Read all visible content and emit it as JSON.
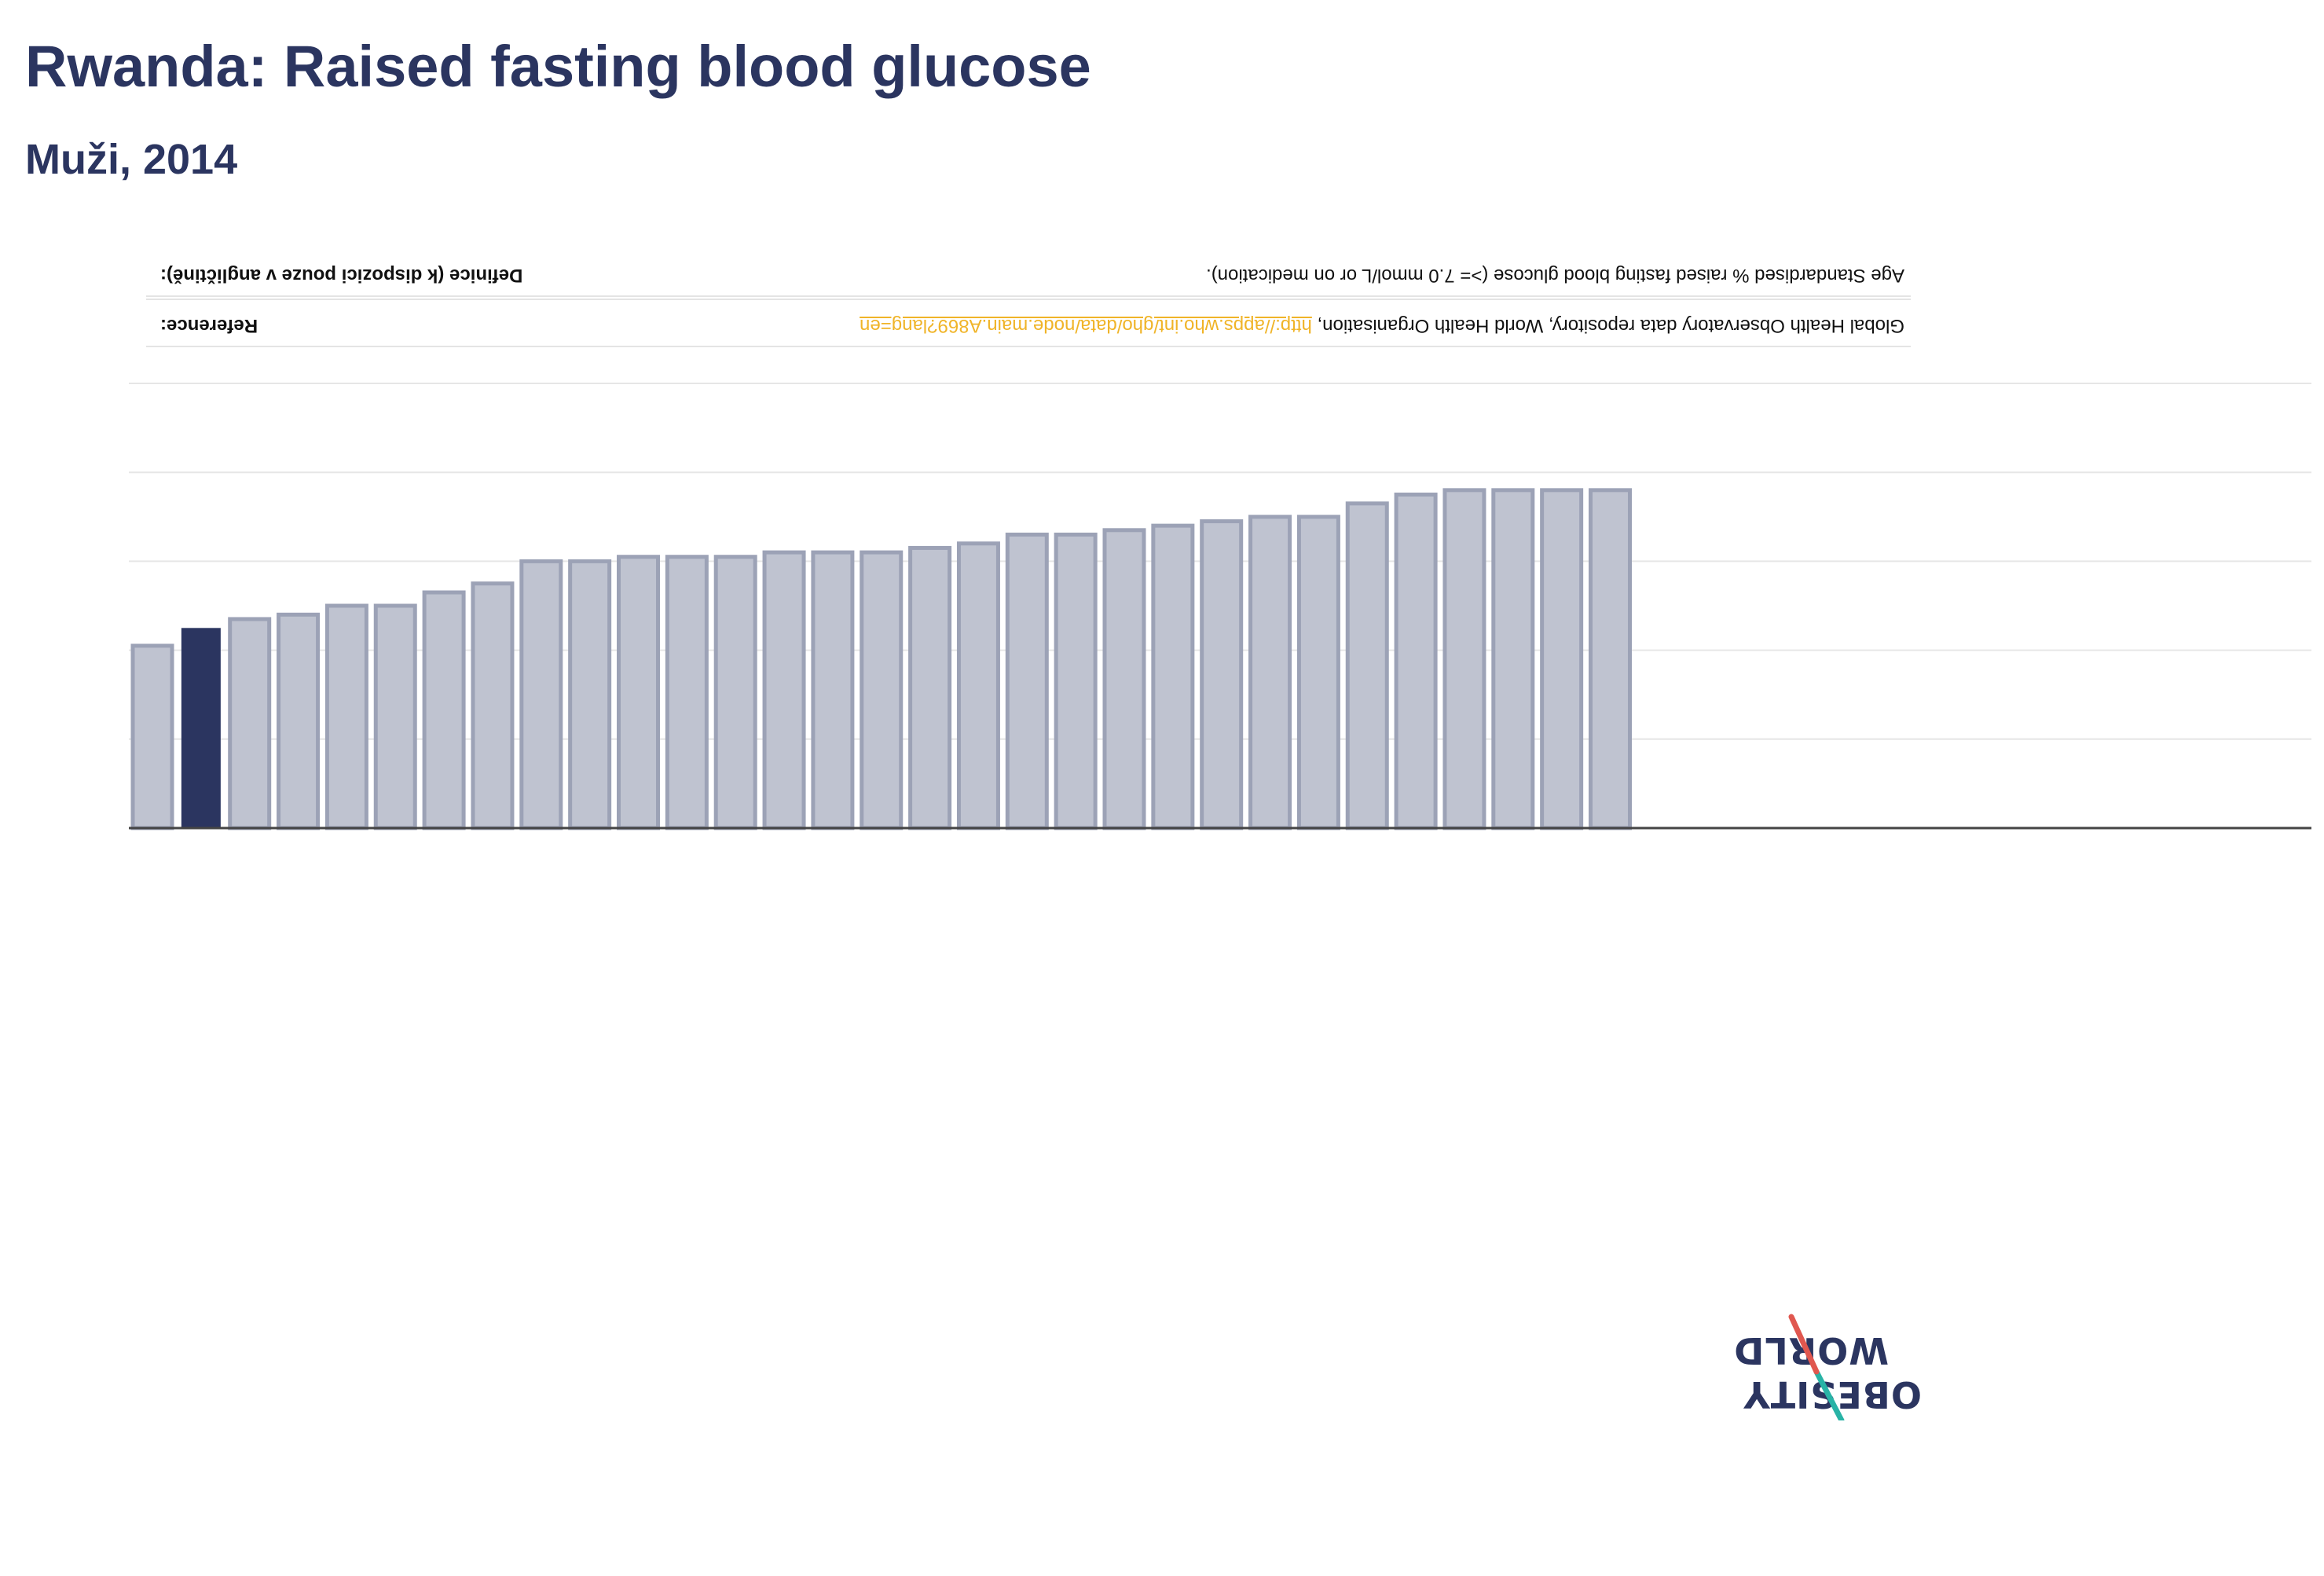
{
  "header": {
    "title": "Rwanda: Raised fasting blood glucose",
    "subtitle": "Muži, 2014"
  },
  "info": {
    "definition_label": "Definice (k dispozici pouze v angličtině):",
    "definition_text": "Age Standardised % raised fasting blood glucose (>= 7.0 mmol/L or on medication).",
    "reference_label": "Reference:",
    "reference_text": "Global Health Observatory data repository, World Health Organisation, ",
    "reference_link": "http://apps.who.int/gho/data/node.main.A869?lang=en"
  },
  "logo": {
    "line1": "OBESITY",
    "line2": "WORLD"
  },
  "colors": {
    "highlight": "#2b3560",
    "bar": "#bfc3d0",
    "bar_stroke": "#9ca2b6",
    "grid": "#e6e6e6",
    "axis": "#444444",
    "link": "#f0b428",
    "logo_red": "#e0574f",
    "logo_teal": "#29b3a6"
  },
  "chart_data": {
    "type": "bar",
    "orientation": "rendered upside-down (rotated 180°)",
    "highlight_index": 1,
    "values": [
      4.1,
      4.5,
      4.7,
      4.8,
      5.0,
      5.0,
      5.3,
      5.5,
      6.0,
      6.0,
      6.1,
      6.1,
      6.1,
      6.2,
      6.2,
      6.2,
      6.3,
      6.4,
      6.6,
      6.6,
      6.7,
      6.8,
      6.9,
      7.0,
      7.0,
      7.3,
      7.5,
      7.6,
      7.6,
      7.6,
      7.6
    ],
    "ylim": [
      0,
      10
    ],
    "y_gridlines": [
      2,
      4,
      6,
      8,
      10
    ],
    "grid": true
  }
}
